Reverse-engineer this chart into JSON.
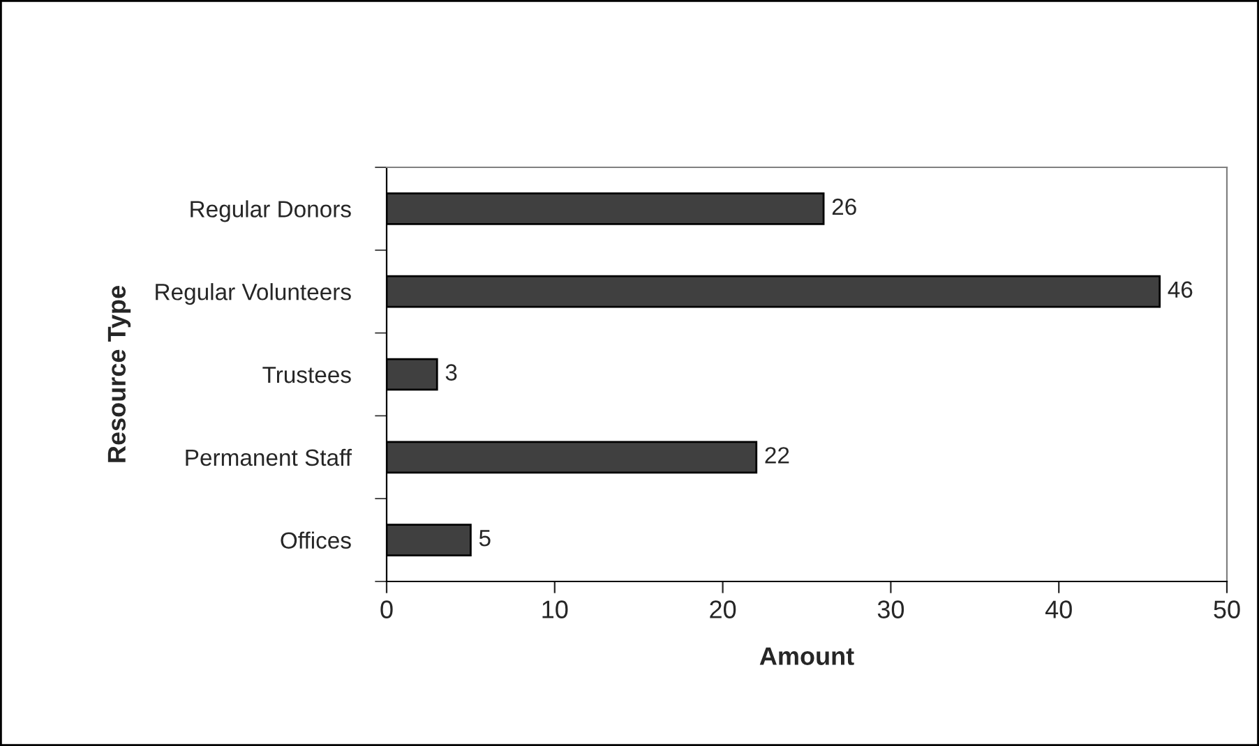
{
  "chart_data": {
    "type": "bar",
    "orientation": "horizontal",
    "categories": [
      "Regular Donors",
      "Regular Volunteers",
      "Trustees",
      "Permanent Staff",
      "Offices"
    ],
    "values": [
      26,
      46,
      3,
      22,
      5
    ],
    "color": "#404040",
    "xlabel": "Amount",
    "ylabel": "Resource Type",
    "xlim": [
      0,
      50
    ],
    "xticks": [
      0,
      10,
      20,
      30,
      40,
      50
    ],
    "data_labels": true,
    "grid": false
  }
}
